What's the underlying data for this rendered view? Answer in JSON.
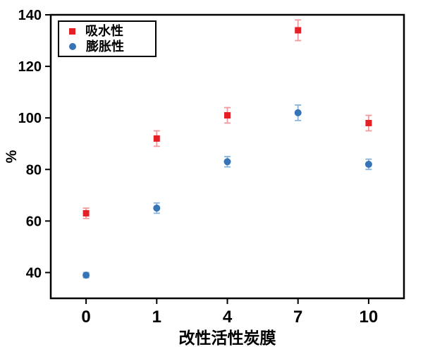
{
  "chart_data": {
    "type": "scatter",
    "title": "",
    "xlabel": "改性活性炭膜",
    "ylabel": "%",
    "categories": [
      "0",
      "1",
      "4",
      "7",
      "10"
    ],
    "y_ticks": [
      40,
      60,
      80,
      100,
      120,
      140
    ],
    "ylim": [
      30,
      140
    ],
    "grid": false,
    "legend_position": "top-left",
    "series": [
      {
        "name": "吸水性",
        "marker": "square",
        "color": "#e42026",
        "error_color": "#f29a9d",
        "values": [
          63,
          92,
          101,
          134,
          98
        ],
        "errors": [
          2,
          3,
          3,
          4,
          3
        ]
      },
      {
        "name": "膨胀性",
        "marker": "circle",
        "color": "#3674b5",
        "error_color": "#8ab4dc",
        "values": [
          39,
          65,
          83,
          102,
          82
        ],
        "errors": [
          1,
          2,
          2,
          3,
          2
        ]
      }
    ]
  }
}
